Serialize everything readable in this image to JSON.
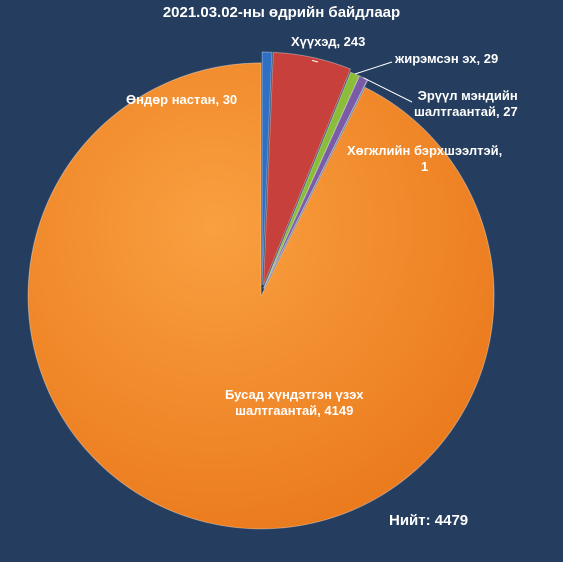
{
  "chart_data": {
    "type": "pie",
    "title": "2021.03.02-ны өдрийн байдлаар",
    "total_label": "Нийт: 4479",
    "slices": [
      {
        "label": "Өндөр настан, 30",
        "value": 30,
        "color": "#2f6fc4"
      },
      {
        "label": "Хүүхэд, 243",
        "value": 243,
        "color": "#c8403b"
      },
      {
        "label": "жирэмсэн эх, 29",
        "value": 29,
        "color": "#8bbd3a"
      },
      {
        "label": "Эрүүл мэндийн\nшалтгаантай, 27",
        "value": 27,
        "color": "#7b5aa6"
      },
      {
        "label": "Хөгжлийн бэрхшээлтэй,\n1",
        "value": 1,
        "color": "#3fa0b8"
      },
      {
        "label": "Бусад хүндэтгэн үзэх\nшалтгаантай, 4149",
        "value": 4149,
        "color": "#f28a24"
      }
    ]
  }
}
